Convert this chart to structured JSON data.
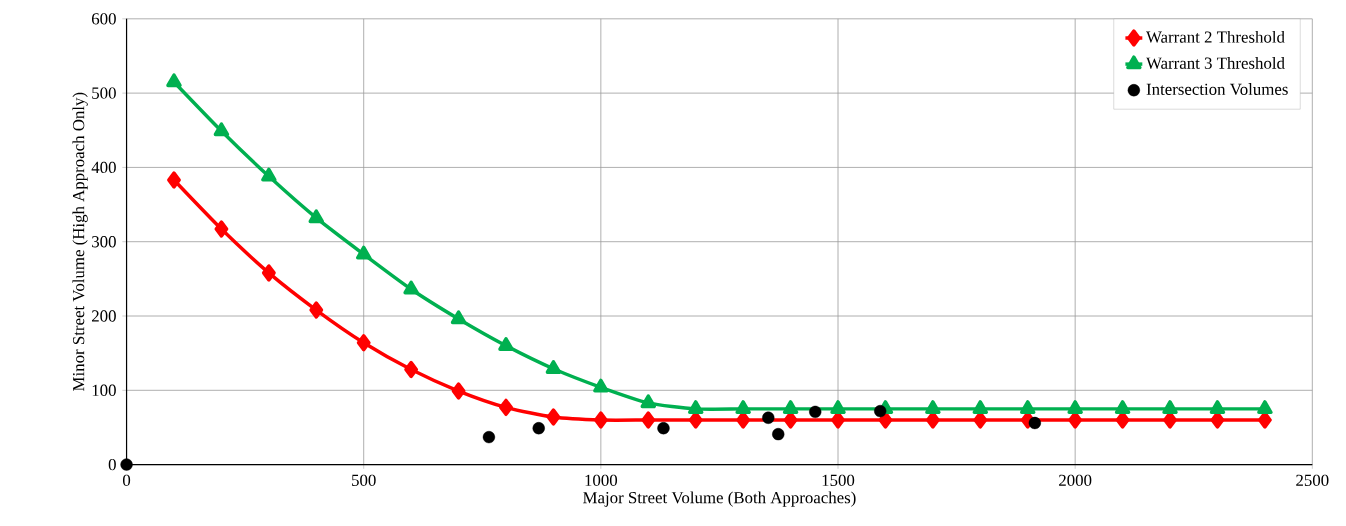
{
  "chart_data": {
    "type": "line",
    "xlabel": "Major Street Volume (Both Approaches)",
    "ylabel": "Minor Street Volume (High Approach Only)",
    "xlim": [
      0,
      2500
    ],
    "ylim": [
      0,
      600
    ],
    "xticks": [
      0,
      500,
      1000,
      1500,
      2000,
      2500
    ],
    "yticks": [
      0,
      100,
      200,
      300,
      400,
      500,
      600
    ],
    "grid": true,
    "legend": "top right",
    "line_style": "solid",
    "series": [
      {
        "name": "Warrant 2 Threshold",
        "color": "#ff0000",
        "marker": "diamond",
        "x": [
          100,
          200,
          300,
          400,
          500,
          600,
          700,
          800,
          900,
          1000,
          1100,
          1200,
          1300,
          1400,
          1500,
          1600,
          1700,
          1800,
          1900,
          2000,
          2100,
          2200,
          2300,
          2400
        ],
        "values": [
          383,
          317,
          258,
          208,
          164,
          128,
          99,
          77,
          64,
          60,
          60,
          60,
          60,
          60,
          60,
          60,
          60,
          60,
          60,
          60,
          60,
          60,
          60,
          60
        ]
      },
      {
        "name": "Warrant 3 Threshold",
        "color": "#00b050",
        "marker": "triangle",
        "x": [
          100,
          200,
          300,
          400,
          500,
          600,
          700,
          800,
          900,
          1000,
          1100,
          1200,
          1300,
          1400,
          1500,
          1600,
          1700,
          1800,
          1900,
          2000,
          2100,
          2200,
          2300,
          2400
        ],
        "values": [
          515,
          449,
          388,
          332,
          283,
          236,
          196,
          160,
          129,
          104,
          83,
          75,
          75,
          75,
          75,
          75,
          75,
          75,
          75,
          75,
          75,
          75,
          75,
          75
        ]
      },
      {
        "name": "Intersection Volumes",
        "type": "scatter",
        "color": "#000000",
        "marker": "circle",
        "x": [
          0,
          764,
          869,
          1132,
          1353,
          1374,
          1452,
          1589,
          1915
        ],
        "values": [
          0,
          37,
          49,
          49,
          63,
          41,
          71,
          72,
          56
        ]
      }
    ]
  }
}
